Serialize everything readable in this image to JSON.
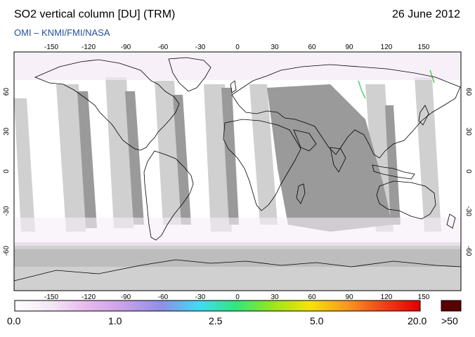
{
  "header": {
    "title": "SO2 vertical column [DU] (TRM)",
    "date": "26 June 2012",
    "subtitle": "OMI  –  KNMI/FMI/NASA"
  },
  "map": {
    "projection": "equirectangular",
    "lon_range": [
      -180,
      180
    ],
    "lat_range": [
      -90,
      90
    ],
    "lon_ticks": [
      -150,
      -120,
      -90,
      -60,
      -30,
      0,
      30,
      60,
      90,
      120,
      150
    ],
    "lat_ticks": [
      60,
      30,
      0,
      -30,
      -60
    ],
    "colors": {
      "background": "#ffffff",
      "no_data_dark": "#9a9a9a",
      "no_data_light": "#d0d0d0",
      "coastline": "#000000",
      "frame": "#000000"
    }
  },
  "colorbar": {
    "labels": [
      "0.0",
      "1.0",
      "2.5",
      "5.0",
      "20.0"
    ],
    "overflow_label": ">50",
    "gradient_colors": [
      "#ffffff",
      "#f4e6f6",
      "#e6b8ec",
      "#c7a0e8",
      "#8f8fe6",
      "#3fdcf5",
      "#2fe77e",
      "#9be61a",
      "#f6e30a",
      "#f79a1e",
      "#f2421a",
      "#e00000"
    ],
    "overflow_color": "#5a0000"
  }
}
